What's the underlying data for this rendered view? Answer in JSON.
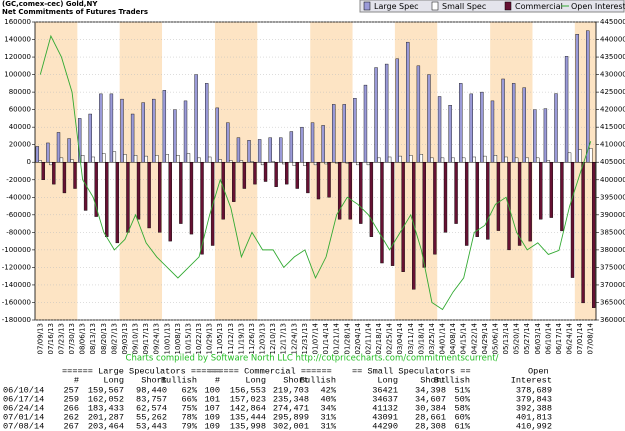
{
  "chart_data": {
    "type": "bar",
    "title": "(GC,comex-cec) Gold,NY",
    "subtitle": "Net Commitments of Futures Traders",
    "footer": "Charts compiled by Software North LLC    http://cotpricecharts.com/commitmentscurrent/",
    "categories": [
      "07/09/13",
      "07/16/13",
      "07/23/13",
      "07/30/13",
      "08/06/13",
      "08/13/13",
      "08/20/13",
      "08/27/13",
      "09/03/13",
      "09/10/13",
      "09/17/13",
      "09/24/13",
      "10/01/13",
      "10/08/13",
      "10/15/13",
      "10/22/13",
      "10/29/13",
      "11/05/13",
      "11/12/13",
      "11/19/13",
      "11/26/13",
      "12/03/13",
      "12/10/13",
      "12/17/13",
      "12/24/13",
      "12/31/13",
      "01/07/14",
      "01/14/14",
      "01/21/14",
      "01/28/14",
      "02/04/14",
      "02/11/14",
      "02/18/14",
      "02/25/14",
      "03/04/14",
      "03/11/14",
      "03/18/14",
      "03/25/14",
      "04/01/14",
      "04/08/14",
      "04/15/14",
      "04/22/14",
      "04/29/14",
      "05/06/14",
      "05/13/14",
      "05/20/14",
      "05/27/14",
      "06/03/14",
      "06/10/14",
      "06/17/14",
      "06/24/14",
      "07/01/14",
      "07/08/14"
    ],
    "series": [
      {
        "name": "Large Spec",
        "color": "#9a9ad8",
        "values": [
          18000,
          22000,
          34000,
          27000,
          50000,
          55000,
          78000,
          78000,
          72000,
          55000,
          68000,
          72000,
          82000,
          60000,
          70000,
          100000,
          90000,
          62000,
          45000,
          28000,
          25000,
          26000,
          28000,
          28000,
          35000,
          40000,
          45000,
          42000,
          66000,
          66000,
          73000,
          88000,
          108000,
          112000,
          118000,
          137000,
          110000,
          100000,
          75000,
          65000,
          90000,
          78000,
          80000,
          70000,
          95000,
          90000,
          85000,
          60000,
          61127,
          78295,
          120859,
          146025,
          150021
        ]
      },
      {
        "name": "Small Spec",
        "color": "#ffffff",
        "values": [
          2000,
          -3000,
          5000,
          3000,
          8000,
          6000,
          10000,
          12000,
          9000,
          8000,
          7000,
          8000,
          9000,
          8000,
          10000,
          5000,
          6000,
          3000,
          2000,
          2000,
          1000,
          -3000,
          1000,
          -2000,
          -4000,
          -4000,
          -3000,
          -2000,
          -1000,
          -1000,
          -3000,
          -3000,
          5000,
          6000,
          7000,
          8000,
          9000,
          5000,
          5000,
          5000,
          5000,
          6000,
          7000,
          8000,
          6000,
          5000,
          5000,
          5000,
          2023,
          30,
          10748,
          14430,
          15982
        ]
      },
      {
        "name": "Commercial",
        "color": "#661133",
        "values": [
          -20000,
          -25000,
          -35000,
          -30000,
          -55000,
          -62000,
          -85000,
          -92000,
          -80000,
          -65000,
          -75000,
          -80000,
          -90000,
          -70000,
          -82000,
          -105000,
          -95000,
          -65000,
          -45000,
          -30000,
          -25000,
          -22000,
          -28000,
          -25000,
          -30000,
          -35000,
          -42000,
          -40000,
          -65000,
          -65000,
          -70000,
          -85000,
          -115000,
          -118000,
          -125000,
          -145000,
          -120000,
          -105000,
          -80000,
          -70000,
          -95000,
          -85000,
          -88000,
          -78000,
          -100000,
          -95000,
          -90000,
          -65000,
          -63150,
          -78325,
          -131607,
          -160455,
          -166003
        ]
      },
      {
        "name": "Open Interest",
        "color": "#33aa33",
        "type": "line",
        "axis": "y2",
        "values": [
          430000,
          441000,
          435000,
          425000,
          400000,
          395000,
          385000,
          380000,
          383000,
          390000,
          382000,
          378000,
          375000,
          372000,
          375000,
          378000,
          390000,
          400000,
          392000,
          378000,
          385000,
          380000,
          380000,
          375000,
          378000,
          380000,
          372000,
          378000,
          390000,
          395000,
          393000,
          390000,
          385000,
          380000,
          385000,
          390000,
          380000,
          365000,
          363000,
          368000,
          372000,
          385000,
          387000,
          393000,
          395000,
          385000,
          380000,
          382000,
          378689,
          379843,
          392388,
          401813,
          410992
        ]
      }
    ],
    "ylim": [
      -180000,
      160000
    ],
    "yticks": [
      -180000,
      -160000,
      -140000,
      -120000,
      -100000,
      -80000,
      -60000,
      -40000,
      -20000,
      0,
      20000,
      40000,
      60000,
      80000,
      100000,
      120000,
      140000,
      160000
    ],
    "y2lim": [
      360000,
      445000
    ],
    "y2ticks": [
      360000,
      365000,
      370000,
      375000,
      380000,
      385000,
      390000,
      395000,
      400000,
      405000,
      410000,
      415000,
      420000,
      425000,
      430000,
      435000,
      440000,
      445000
    ],
    "grid": true,
    "legend": "top-right",
    "month_shading": "#fde4c4"
  },
  "table": {
    "group_headers": [
      "====== Large Speculators ======",
      "====== Commercial ======",
      "== Small Speculators ==",
      "Open"
    ],
    "headers": [
      "#",
      "Long",
      "Short",
      "Bullish",
      "#",
      "Long",
      "Short",
      "Bullish",
      "Long",
      "Short",
      "Bullish",
      "Interest"
    ],
    "rows": [
      [
        "06/10/14",
        "257",
        "159,567",
        "98,440",
        "62%",
        "100",
        "156,553",
        "219,703",
        "42%",
        "36421",
        "34,398",
        "51%",
        "378,689"
      ],
      [
        "06/17/14",
        "259",
        "162,052",
        "83,757",
        "66%",
        "101",
        "157,023",
        "235,348",
        "40%",
        "34637",
        "34,607",
        "50%",
        "379,843"
      ],
      [
        "06/24/14",
        "266",
        "183,433",
        "62,574",
        "75%",
        "107",
        "142,864",
        "274,471",
        "34%",
        "41132",
        "30,384",
        "58%",
        "392,388"
      ],
      [
        "07/01/14",
        "262",
        "201,287",
        "55,262",
        "78%",
        "109",
        "135,444",
        "295,899",
        "31%",
        "43091",
        "28,661",
        "60%",
        "401,813"
      ],
      [
        "07/08/14",
        "267",
        "203,464",
        "53,443",
        "79%",
        "109",
        "135,998",
        "302,001",
        "31%",
        "44290",
        "28,308",
        "61%",
        "410,992"
      ]
    ]
  }
}
